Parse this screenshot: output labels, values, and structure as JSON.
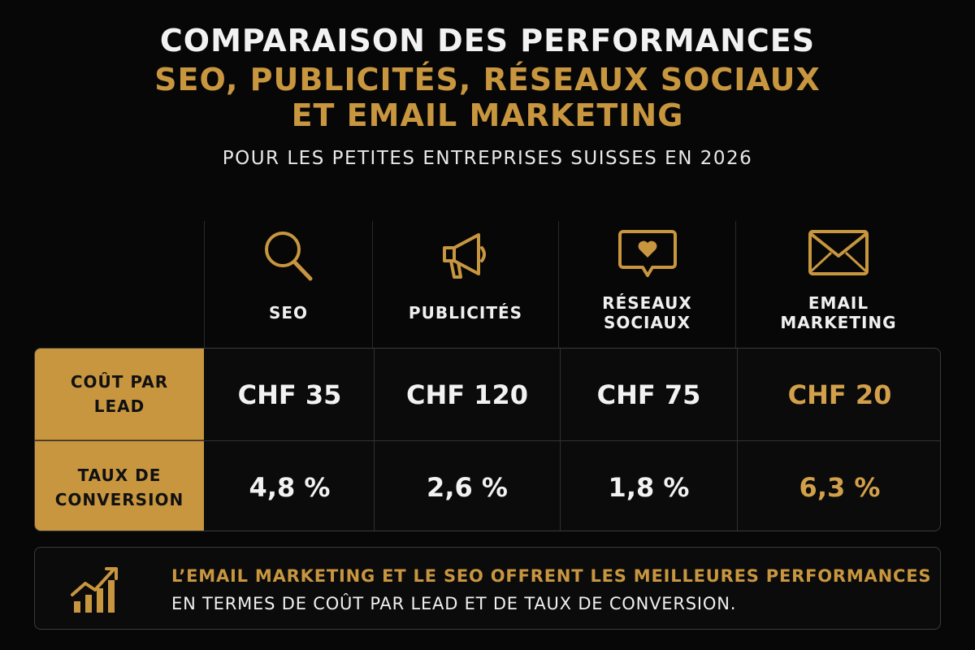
{
  "header": {
    "title_line1": "COMPARAISON DES PERFORMANCES",
    "title_line2": "SEO, PUBLICITÉS, RÉSEAUX SOCIAUX",
    "title_line3": "ET EMAIL MARKETING",
    "subtitle": "POUR LES PETITES ENTREPRISES SUISSES EN 2026"
  },
  "columns": [
    {
      "label": "SEO",
      "icon": "search-icon"
    },
    {
      "label": "PUBLICITÉS",
      "icon": "megaphone-icon"
    },
    {
      "label": "RÉSEAUX\nSOCIAUX",
      "icon": "chat-heart-icon"
    },
    {
      "label": "EMAIL\nMARKETING",
      "icon": "envelope-icon"
    }
  ],
  "rows": [
    {
      "label": "COÛT PAR\nLEAD",
      "values": [
        "CHF 35",
        "CHF 120",
        "CHF 75",
        "CHF 20"
      ]
    },
    {
      "label": "TAUX DE\nCONVERSION",
      "values": [
        "4,8 %",
        "2,6 %",
        "1,8 %",
        "6,3 %"
      ]
    }
  ],
  "footer": {
    "icon": "growth-chart-icon",
    "line1": "L’EMAIL MARKETING ET LE SEO OFFRENT LES MEILLEURES PERFORMANCES",
    "line2": "EN TERMES DE COÛT PAR LEAD ET DE TAUX DE CONVERSION."
  },
  "colors": {
    "background": "#070707",
    "accent_gold": "#c8963f",
    "text": "#f2f2f2"
  }
}
